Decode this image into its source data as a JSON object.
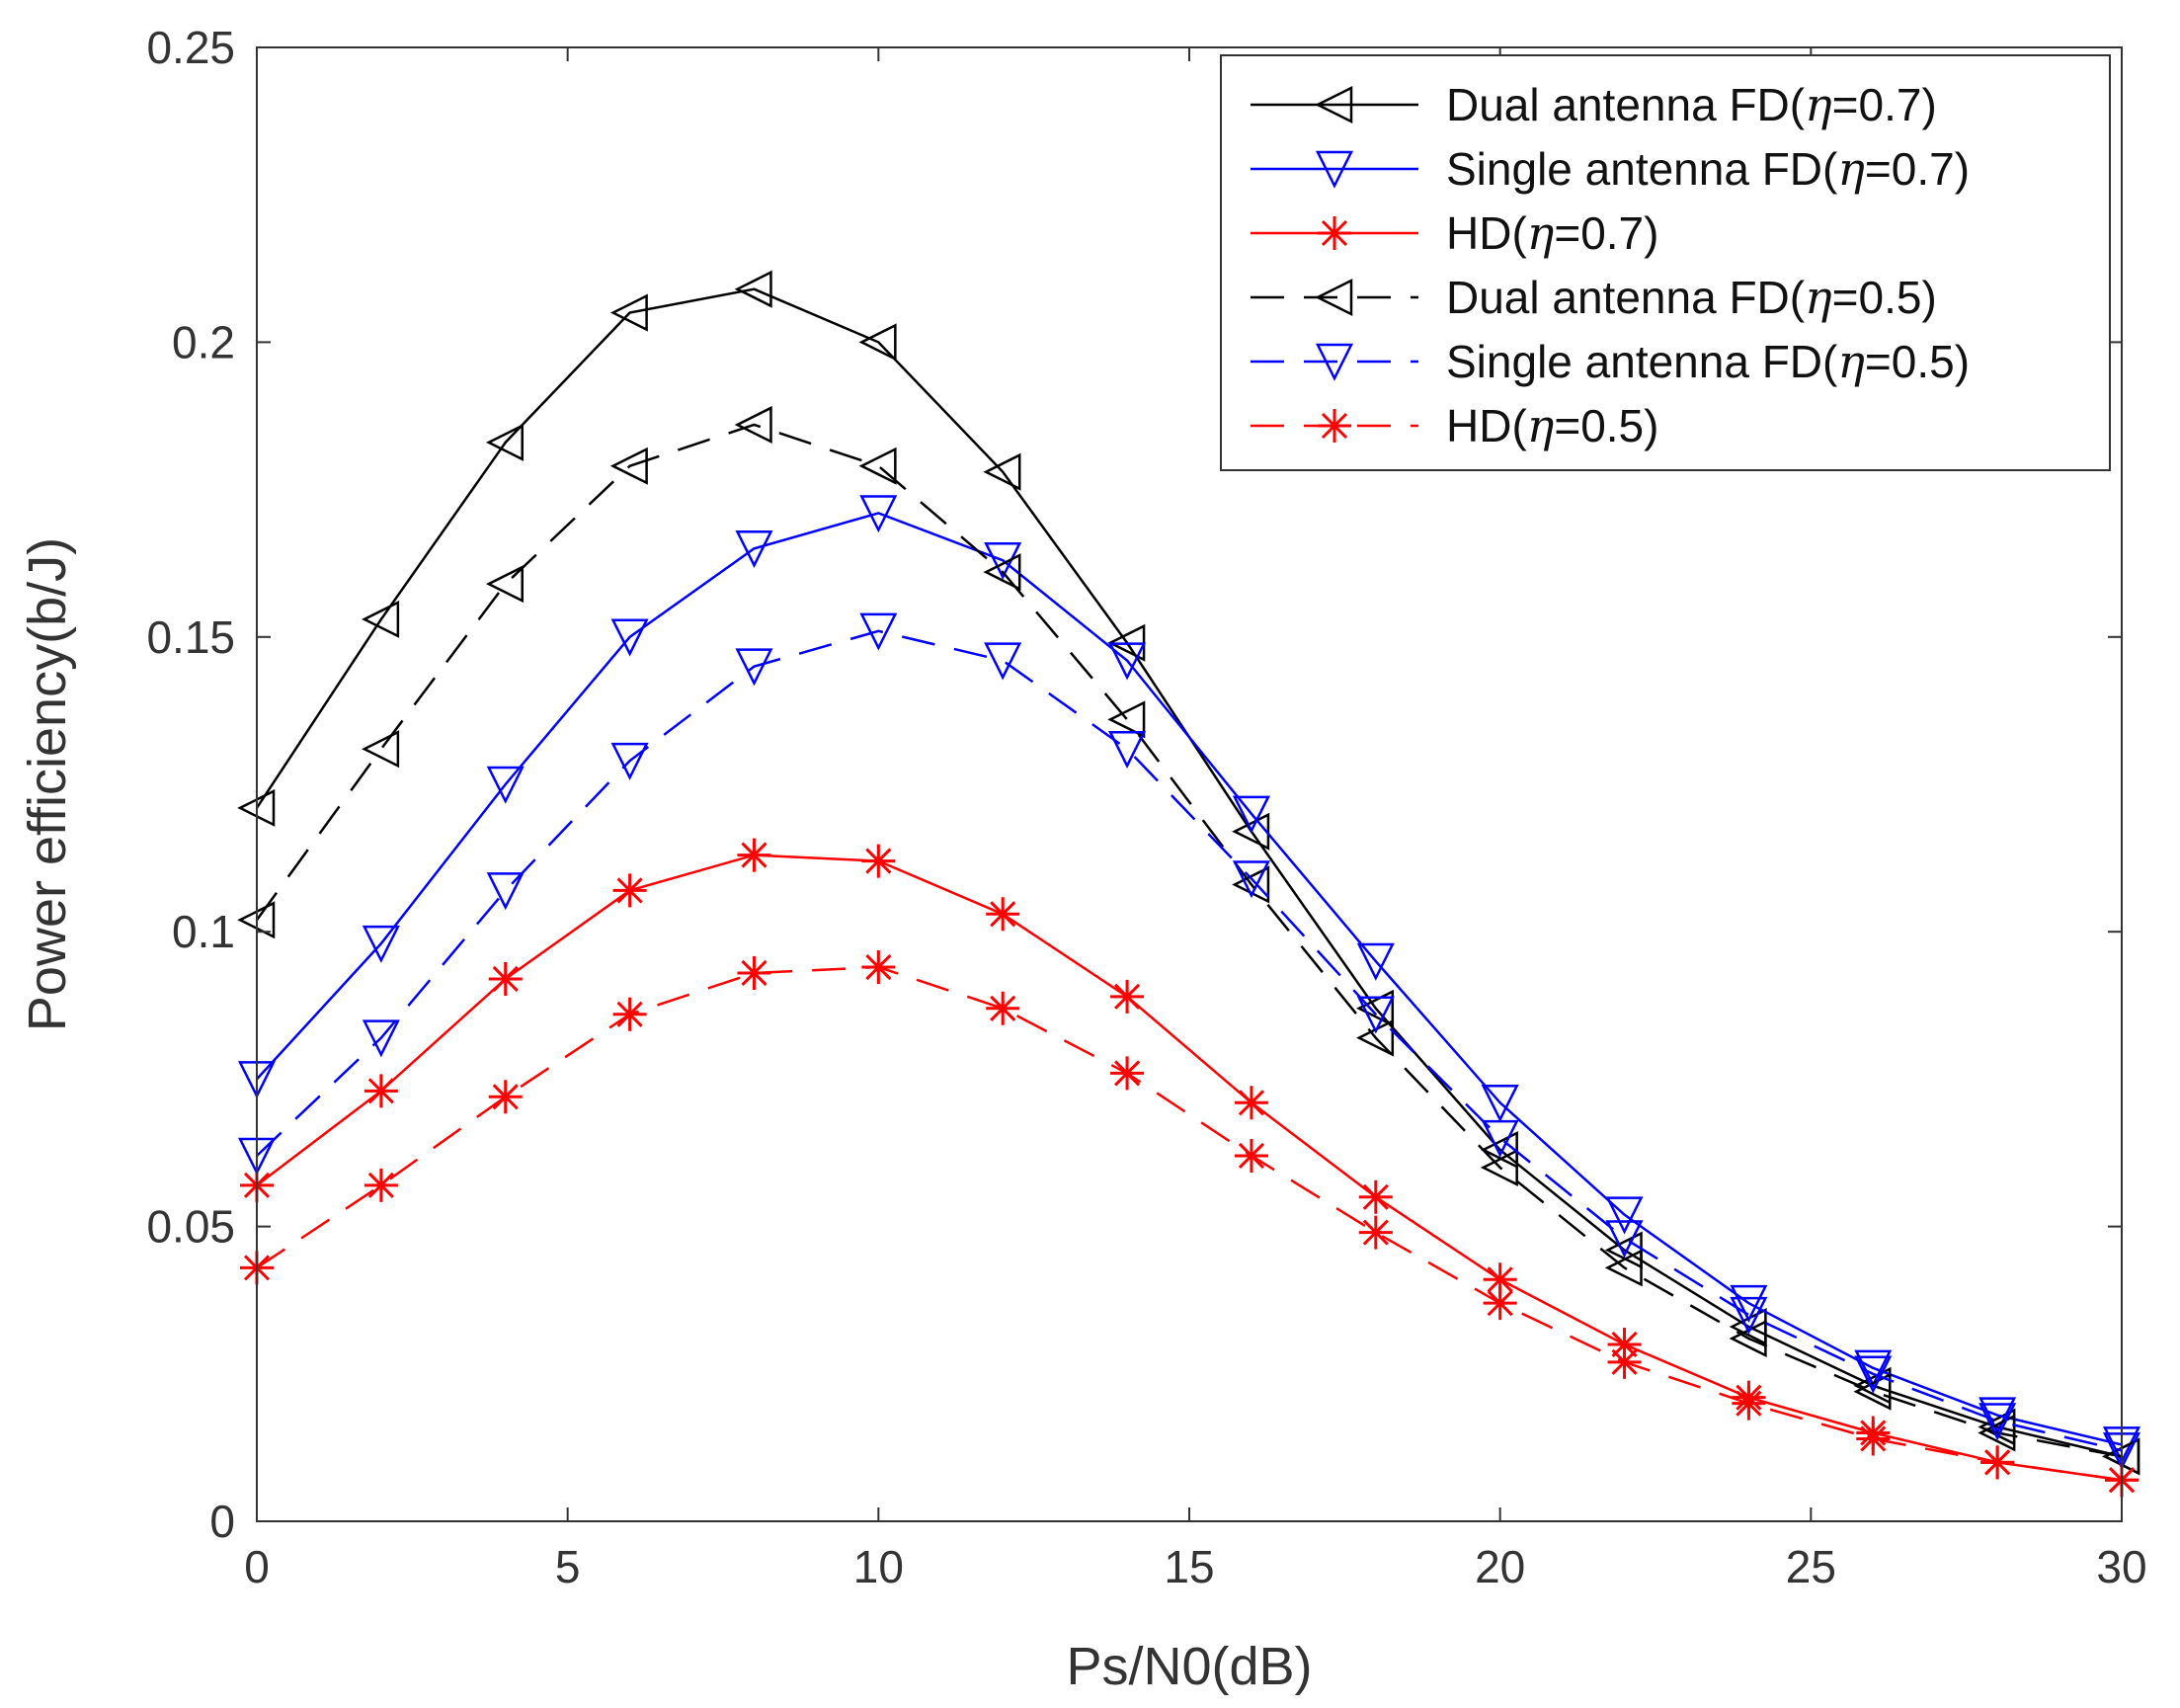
{
  "chart_data": {
    "type": "line",
    "title": "",
    "xlabel": "Ps/N0(dB)",
    "ylabel": "Power efficiency(b/J)",
    "xlim": [
      0,
      30
    ],
    "ylim": [
      0,
      0.25
    ],
    "grid": false,
    "legend_position": "top-right",
    "x_ticks": [
      "0",
      "5",
      "10",
      "15",
      "20",
      "25",
      "30"
    ],
    "y_ticks": [
      "0",
      "0.05",
      "0.1",
      "0.15",
      "0.2",
      "0.25"
    ],
    "x": [
      0,
      2,
      4,
      6,
      8,
      10,
      12,
      14,
      16,
      18,
      20,
      22,
      24,
      26,
      28,
      30
    ],
    "series": [
      {
        "name": "Dual antenna FD(η=0.7)",
        "label_prefix": "Dual antenna FD(",
        "label_suffix": "=0.7)",
        "color": "#000000",
        "dash": "solid",
        "marker": "triangle-left",
        "values": [
          0.121,
          0.153,
          0.183,
          0.205,
          0.209,
          0.2,
          0.178,
          0.149,
          0.117,
          0.087,
          0.063,
          0.046,
          0.033,
          0.023,
          0.016,
          0.011
        ]
      },
      {
        "name": "Single antenna FD(η=0.7)",
        "label_prefix": "Single antenna FD(",
        "label_suffix": "=0.7)",
        "color": "#0000ff",
        "dash": "solid",
        "marker": "triangle-down",
        "values": [
          0.075,
          0.098,
          0.125,
          0.15,
          0.165,
          0.171,
          0.163,
          0.146,
          0.12,
          0.095,
          0.071,
          0.052,
          0.037,
          0.026,
          0.018,
          0.013
        ]
      },
      {
        "name": "HD(η=0.7)",
        "label_prefix": "HD(",
        "label_suffix": "=0.7)",
        "color": "#ff0000",
        "dash": "solid",
        "marker": "asterisk",
        "values": [
          0.057,
          0.073,
          0.092,
          0.107,
          0.113,
          0.112,
          0.103,
          0.089,
          0.071,
          0.055,
          0.041,
          0.03,
          0.021,
          0.015,
          0.01,
          0.007
        ]
      },
      {
        "name": "Dual antenna FD(η=0.5)",
        "label_prefix": "Dual antenna FD(",
        "label_suffix": "=0.5)",
        "color": "#000000",
        "dash": "dashed",
        "marker": "triangle-left",
        "values": [
          0.102,
          0.131,
          0.159,
          0.179,
          0.186,
          0.179,
          0.161,
          0.136,
          0.108,
          0.082,
          0.06,
          0.043,
          0.031,
          0.022,
          0.015,
          0.011
        ]
      },
      {
        "name": "Single antenna FD(η=0.5)",
        "label_prefix": "Single antenna FD(",
        "label_suffix": "=0.5)",
        "color": "#0000ff",
        "dash": "dashed",
        "marker": "triangle-down",
        "values": [
          0.062,
          0.082,
          0.107,
          0.129,
          0.145,
          0.151,
          0.146,
          0.131,
          0.109,
          0.086,
          0.065,
          0.048,
          0.035,
          0.025,
          0.017,
          0.012
        ]
      },
      {
        "name": "HD(η=0.5)",
        "label_prefix": "HD(",
        "label_suffix": "=0.5)",
        "color": "#ff0000",
        "dash": "dashed",
        "marker": "asterisk",
        "values": [
          0.043,
          0.057,
          0.072,
          0.086,
          0.093,
          0.094,
          0.087,
          0.076,
          0.062,
          0.049,
          0.037,
          0.027,
          0.02,
          0.014,
          0.01,
          0.007
        ]
      }
    ]
  }
}
